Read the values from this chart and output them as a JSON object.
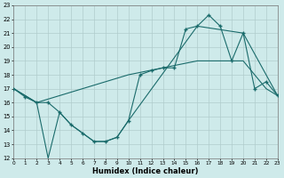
{
  "xlabel": "Humidex (Indice chaleur)",
  "xlim": [
    0,
    23
  ],
  "ylim": [
    12,
    23
  ],
  "xticks": [
    0,
    1,
    2,
    3,
    4,
    5,
    6,
    7,
    8,
    9,
    10,
    11,
    12,
    13,
    14,
    15,
    16,
    17,
    18,
    19,
    20,
    21,
    22,
    23
  ],
  "yticks": [
    12,
    13,
    14,
    15,
    16,
    17,
    18,
    19,
    20,
    21,
    22,
    23
  ],
  "bg_color": "#ceeaea",
  "grid_color": "#b0cccc",
  "line_color": "#1a6b6b",
  "line1_x": [
    0,
    1,
    2,
    3,
    4,
    5,
    6,
    7,
    8,
    9,
    10,
    11,
    12,
    13,
    14,
    15,
    16,
    17,
    18,
    19,
    20,
    21,
    22,
    23
  ],
  "line1_y": [
    17.0,
    16.4,
    16.0,
    16.0,
    15.3,
    14.4,
    13.8,
    13.2,
    13.2,
    13.5,
    14.7,
    18.0,
    18.3,
    18.5,
    18.5,
    21.3,
    21.5,
    22.3,
    21.5,
    19.0,
    21.0,
    17.0,
    17.5,
    16.5
  ],
  "line2_x": [
    0,
    2,
    10,
    16,
    18,
    20,
    22,
    23
  ],
  "line2_y": [
    17.0,
    16.0,
    18.0,
    19.0,
    19.0,
    19.0,
    17.0,
    16.5
  ],
  "line3_x": [
    0,
    2,
    3,
    4,
    5,
    6,
    7,
    8,
    9,
    10,
    16,
    20,
    23
  ],
  "line3_y": [
    17.0,
    16.0,
    12.0,
    15.3,
    14.4,
    13.8,
    13.2,
    13.2,
    13.5,
    14.7,
    21.5,
    21.0,
    16.5
  ]
}
